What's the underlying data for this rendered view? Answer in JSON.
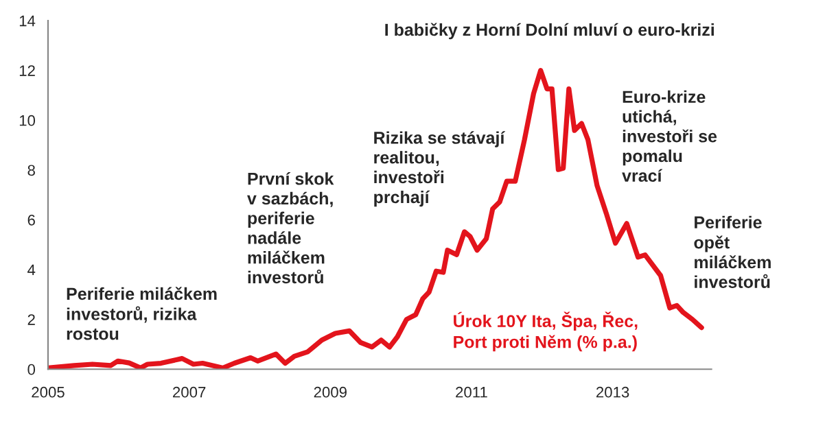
{
  "chart_data": {
    "type": "line",
    "title": "I babičky z Horní Dolní mluví o euro-krizi",
    "annotations": [
      "Periferie miláčkem\ninvestorů, rizika\nrostou",
      "První skok\nv sazbách,\nperiferie\nnadále\nmiláčkem\ninvestorů",
      "Rizika se stávají\nrealitou,\ninvestoři\nprchají",
      "Euro-krize\nutichá,\ninvestoři se\npomalu\nvrací",
      "Periferie\nopět\nmiláčkem\ninvestorů"
    ],
    "xlim": [
      2005,
      2014.4
    ],
    "xticks": [
      2005,
      2007,
      2009,
      2011,
      2013
    ],
    "ylim": [
      0,
      14
    ],
    "yticks": [
      0,
      2,
      4,
      6,
      8,
      10,
      12,
      14
    ],
    "grid": false,
    "legend": false,
    "series": [
      {
        "name": "Úrok 10Y Ita, Špa, Řec,\nPort proti Něm (% p.a.)",
        "color": "#e3141c",
        "x": [
          2005,
          2005.37,
          2005.63,
          2005.89,
          2005.99,
          2006.15,
          2006.31,
          2006.41,
          2006.6,
          2006.9,
          2007.06,
          2007.19,
          2007.48,
          2007.64,
          2007.87,
          2007.97,
          2008.23,
          2008.36,
          2008.49,
          2008.68,
          2008.88,
          2009.07,
          2009.27,
          2009.43,
          2009.59,
          2009.72,
          2009.84,
          2009.95,
          2010.08,
          2010.21,
          2010.31,
          2010.4,
          2010.5,
          2010.6,
          2010.66,
          2010.79,
          2010.9,
          2010.98,
          2011.08,
          2011.21,
          2011.3,
          2011.4,
          2011.5,
          2011.62,
          2011.75,
          2011.88,
          2011.98,
          2012.07,
          2012.14,
          2012.23,
          2012.3,
          2012.38,
          2012.46,
          2012.56,
          2012.65,
          2012.78,
          2012.91,
          2013.04,
          2013.2,
          2013.36,
          2013.46,
          2013.68,
          2013.81,
          2013.91,
          2014.0,
          2014.13,
          2014.26
        ],
        "values": [
          0.05,
          0.15,
          0.2,
          0.15,
          0.33,
          0.25,
          0.05,
          0.2,
          0.24,
          0.43,
          0.2,
          0.24,
          0.05,
          0.24,
          0.46,
          0.33,
          0.61,
          0.24,
          0.52,
          0.7,
          1.17,
          1.44,
          1.54,
          1.07,
          0.89,
          1.17,
          0.89,
          1.3,
          2.0,
          2.19,
          2.83,
          3.1,
          3.94,
          3.89,
          4.78,
          4.6,
          5.52,
          5.33,
          4.78,
          5.24,
          6.44,
          6.72,
          7.55,
          7.55,
          9.2,
          11.07,
          12.0,
          11.26,
          11.26,
          8.02,
          8.07,
          11.26,
          9.59,
          9.87,
          9.22,
          7.37,
          6.26,
          5.06,
          5.85,
          4.5,
          4.59,
          3.76,
          2.46,
          2.56,
          2.28,
          2.0,
          1.67
        ]
      }
    ]
  }
}
